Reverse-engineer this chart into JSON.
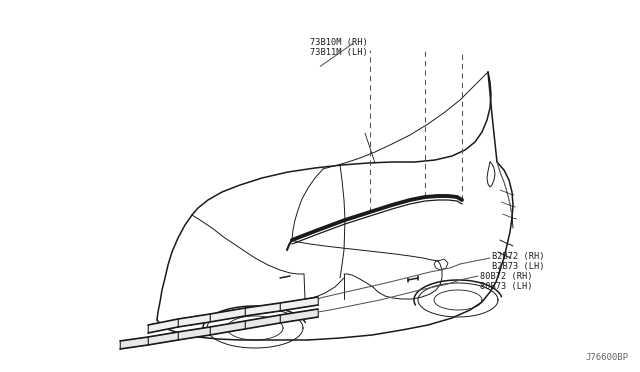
{
  "background_color": "#ffffff",
  "line_color": "#1a1a1a",
  "dashed_line_color": "#555555",
  "label_color": "#1a1a1a",
  "watermark": "J76600BP",
  "labels": {
    "top_part1": "73B10M (RH)",
    "top_part2": "73B11M (LH)",
    "mid_part1": "B2B72 (RH)",
    "mid_part2": "B2B73 (LH)",
    "bot_part1": "80B72 (RH)",
    "bot_part2": "80B73 (LH)"
  },
  "figsize": [
    6.4,
    3.72
  ],
  "dpi": 100
}
